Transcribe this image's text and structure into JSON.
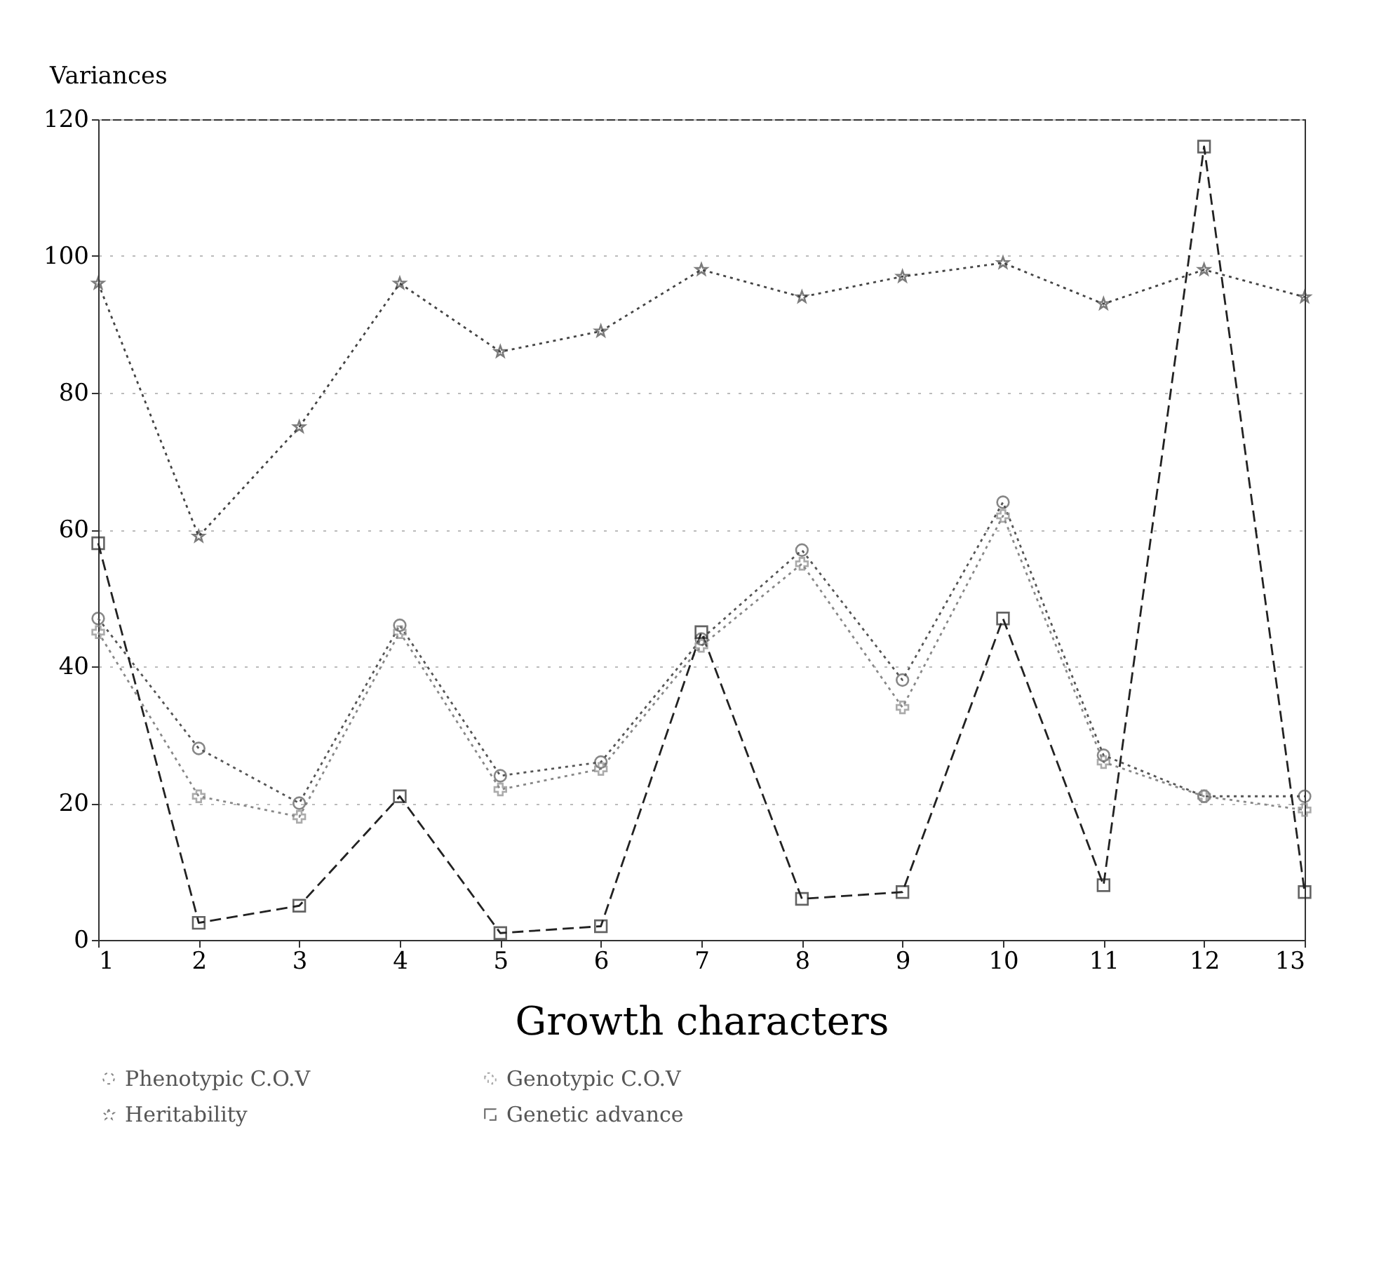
{
  "chart_data": {
    "type": "line",
    "xlabel": "Growth characters",
    "ylabel": "Variances",
    "x": [
      1,
      2,
      3,
      4,
      5,
      6,
      7,
      8,
      9,
      10,
      11,
      12,
      13
    ],
    "xlim": [
      1,
      13
    ],
    "xticks": [
      1,
      2,
      3,
      4,
      5,
      6,
      7,
      8,
      9,
      10,
      11,
      12,
      13
    ],
    "ylim": [
      0,
      120
    ],
    "yticks": [
      0,
      20,
      40,
      60,
      80,
      100,
      120
    ],
    "grid": "y",
    "legend": "bottom",
    "series": [
      {
        "name": "Phenotypic C.O.V",
        "color": "#555555",
        "marker": "circle",
        "line_style": "dotted",
        "values": [
          47,
          28,
          20,
          46,
          24,
          26,
          44,
          57,
          38,
          64,
          27,
          21,
          21
        ]
      },
      {
        "name": "Genotypic C.O.V",
        "color": "#888888",
        "marker": "cross",
        "line_style": "dotted",
        "values": [
          45,
          21,
          18,
          45,
          22,
          25,
          43,
          55,
          34,
          62,
          26,
          21,
          19
        ]
      },
      {
        "name": "Heritability",
        "color": "#444444",
        "marker": "star",
        "line_style": "dotted",
        "values": [
          96,
          59,
          75,
          96,
          86,
          89,
          98,
          94,
          97,
          99,
          93,
          98,
          94
        ]
      },
      {
        "name": "Genetic advance",
        "color": "#222222",
        "marker": "square",
        "line_style": "dashed",
        "values": [
          58,
          2.5,
          5,
          21,
          1,
          2,
          45,
          6,
          7,
          47,
          8,
          116,
          7
        ]
      }
    ]
  }
}
